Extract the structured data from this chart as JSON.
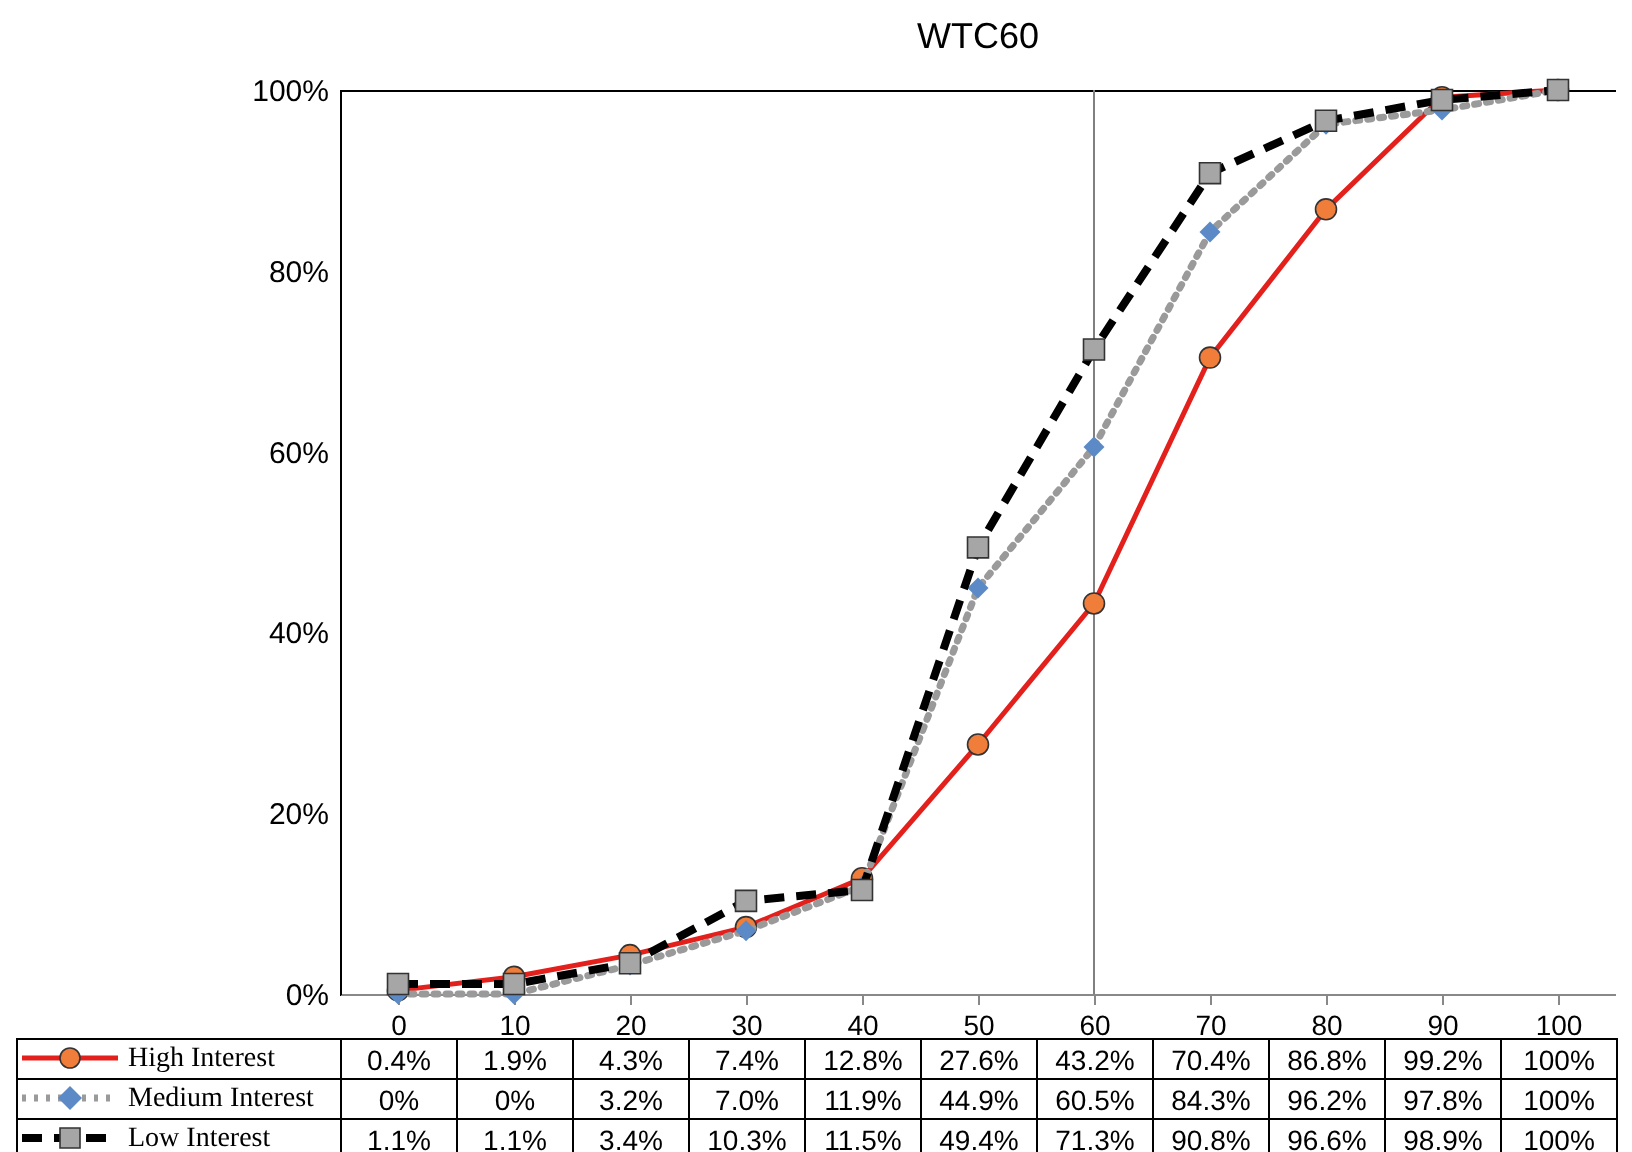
{
  "chart_data": {
    "type": "line",
    "title": "WTC60",
    "categories": [
      "0",
      "10",
      "20",
      "30",
      "40",
      "50",
      "60",
      "70",
      "80",
      "90",
      "100"
    ],
    "series": [
      {
        "name": "High Interest",
        "color": "#e3201b",
        "colors": [
          "#f07d3a",
          "#f07d3a",
          "#f07d3a",
          "#f07d3a",
          "#f07d3a",
          "#f07d3a",
          "#f07d3a",
          "#f07d3a",
          "#f07d3a",
          "#f07d3a",
          "#f07d3a"
        ],
        "marker": "circle",
        "line_style": "solid",
        "values": [
          0.4,
          1.9,
          4.3,
          7.4,
          12.8,
          27.6,
          43.2,
          70.4,
          86.8,
          99.2,
          100
        ],
        "value_labels": [
          "0.4%",
          "1.9%",
          "4.3%",
          "7.4%",
          "12.8%",
          "27.6%",
          "43.2%",
          "70.4%",
          "86.8%",
          "99.2%",
          "100%"
        ]
      },
      {
        "name": "Medium Interest",
        "color": "#9a9a9a",
        "colors": [
          "#5b8ac6",
          "#5b8ac6",
          "#5b8ac6",
          "#5b8ac6",
          "#5b8ac6",
          "#5b8ac6",
          "#5b8ac6",
          "#5b8ac6",
          "#5b8ac6",
          "#5b8ac6",
          "#5b8ac6"
        ],
        "marker": "diamond",
        "line_style": "dotted",
        "values": [
          0,
          0,
          3.2,
          7.0,
          11.9,
          44.9,
          60.5,
          84.3,
          96.2,
          97.8,
          100
        ],
        "value_labels": [
          "0%",
          "0%",
          "3.2%",
          "7.0%",
          "11.9%",
          "44.9%",
          "60.5%",
          "84.3%",
          "96.2%",
          "97.8%",
          "100%"
        ]
      },
      {
        "name": "Low Interest",
        "color": "#000000",
        "colors": [
          "#a6a6a6",
          "#a6a6a6",
          "#a6a6a6",
          "#a6a6a6",
          "#a6a6a6",
          "#a6a6a6",
          "#a6a6a6",
          "#a6a6a6",
          "#a6a6a6",
          "#a6a6a6",
          "#a6a6a6"
        ],
        "marker": "square",
        "line_style": "dashed",
        "values": [
          1.1,
          1.1,
          3.4,
          10.3,
          11.5,
          49.4,
          71.3,
          90.8,
          96.6,
          98.9,
          100
        ],
        "value_labels": [
          "1.1%",
          "1.1%",
          "3.4%",
          "10.3%",
          "11.5%",
          "49.4%",
          "71.3%",
          "90.8%",
          "96.6%",
          "98.9%",
          "100%"
        ]
      }
    ],
    "ylim": [
      0,
      100
    ],
    "yticks": [
      {
        "value": 0,
        "label": "0%"
      },
      {
        "value": 20,
        "label": "20%"
      },
      {
        "value": 40,
        "label": "40%"
      },
      {
        "value": 60,
        "label": "60%"
      },
      {
        "value": 80,
        "label": "80%"
      },
      {
        "value": 100,
        "label": "100%"
      }
    ],
    "ref_lines": [
      {
        "axis": "x",
        "value": "60",
        "color": "#808080"
      }
    ],
    "grid": false,
    "legend": "bottom"
  }
}
